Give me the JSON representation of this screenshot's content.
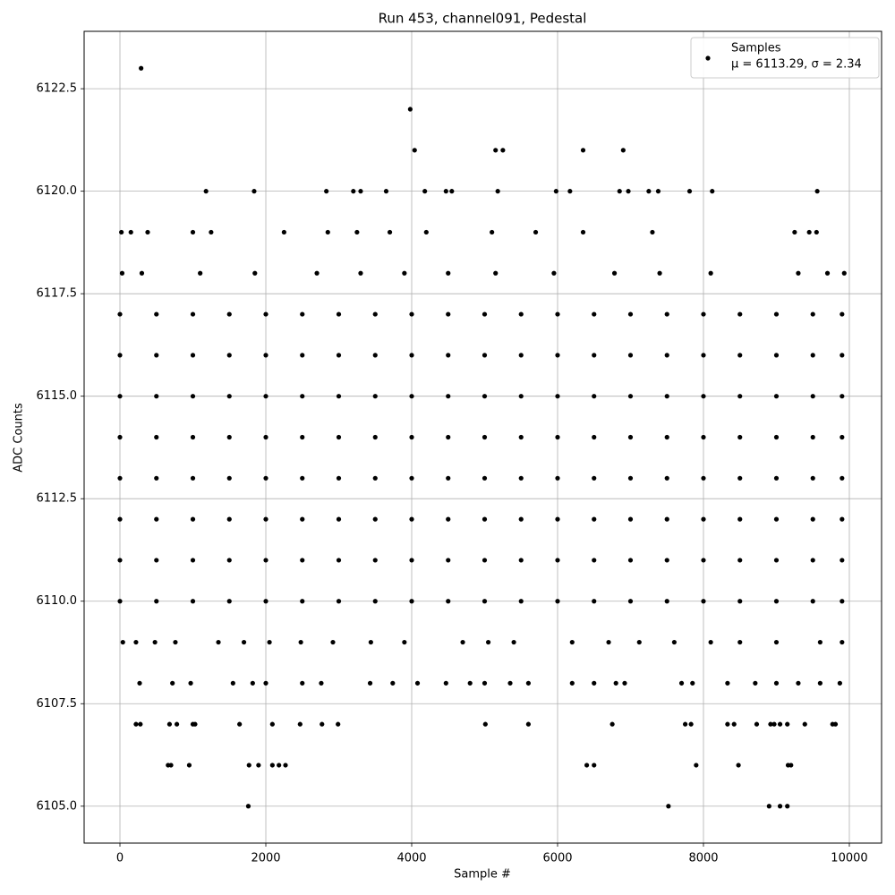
{
  "chart_data": {
    "type": "scatter",
    "title": "Run 453, channel091, Pedestal",
    "x_label": "Sample #",
    "y_label": "ADC Counts",
    "xlim": [
      -491,
      10442
    ],
    "ylim": [
      6104.1,
      6123.9
    ],
    "xticks": [
      0,
      2000,
      4000,
      6000,
      8000,
      10000
    ],
    "yticks": [
      {
        "value": 6105,
        "label": "6105.0"
      },
      {
        "value": 6107.5,
        "label": "6107.5"
      },
      {
        "value": 6110,
        "label": "6110.0"
      },
      {
        "value": 6112.5,
        "label": "6112.5"
      },
      {
        "value": 6115,
        "label": "6115.0"
      },
      {
        "value": 6117.5,
        "label": "6117.5"
      },
      {
        "value": 6120,
        "label": "6120.0"
      },
      {
        "value": 6122.5,
        "label": "6122.5"
      }
    ],
    "grid": true,
    "legend": "upper right",
    "legend_stats": "μ = 6113.29, σ = 2.34",
    "x": [
      290,
      3980,
      4040,
      5150,
      5250,
      6350,
      6900,
      1180,
      1840,
      2830,
      3200,
      3300,
      3650,
      4180,
      4470,
      4550,
      5180,
      5980,
      6170,
      6850,
      6970,
      7250,
      7380,
      7810,
      8120,
      9560,
      1760,
      7520,
      8900,
      9050,
      9150,
      660,
      700,
      950,
      1770,
      1900,
      2090,
      2180,
      2270,
      6400,
      6500,
      7900,
      8480,
      9160,
      9200,
      220,
      280,
      680,
      780,
      1000,
      1030,
      1640,
      2090,
      2470,
      2770,
      2990,
      5010,
      5600,
      6750,
      7750,
      7830,
      8330,
      8420,
      8730,
      8920,
      8970,
      9050,
      9150,
      9390,
      9770,
      9810,
      0,
      500,
      1000,
      1500,
      2000,
      2500,
      3000,
      3500,
      4000,
      4500,
      5000,
      5500,
      6000,
      6500,
      7000,
      7500,
      8000,
      8500,
      9000,
      9500,
      9900,
      0,
      500,
      1000,
      1500,
      2000,
      2500,
      3000,
      3500,
      4000,
      4500,
      5000,
      5500,
      6000,
      6500,
      7000,
      7500,
      8000,
      8500,
      9000,
      9500,
      9900,
      0,
      500,
      1000,
      1500,
      2000,
      2500,
      3000,
      3500,
      4000,
      4500,
      5000,
      5500,
      6000,
      6500,
      7000,
      7500,
      8000,
      8500,
      9000,
      9500,
      9900,
      0,
      500,
      1000,
      1500,
      2000,
      2500,
      3000,
      3500,
      4000,
      4500,
      5000,
      5500,
      6000,
      6500,
      7000,
      7500,
      8000,
      8500,
      9000,
      9500,
      9900,
      0,
      500,
      1000,
      1500,
      2000,
      2500,
      3000,
      3500,
      4000,
      4500,
      5000,
      5500,
      6000,
      6500,
      7000,
      7500,
      8000,
      8500,
      9000,
      9500,
      9900,
      0,
      500,
      1000,
      1500,
      2000,
      2500,
      3000,
      3500,
      4000,
      4500,
      5000,
      5500,
      6000,
      6500,
      7000,
      7500,
      8000,
      8500,
      9000,
      9500,
      9900,
      0,
      500,
      1000,
      1500,
      2000,
      2500,
      3000,
      3500,
      4000,
      4500,
      5000,
      5500,
      6000,
      6500,
      7000,
      7500,
      8000,
      8500,
      9000,
      9500,
      9900,
      0,
      500,
      1000,
      1500,
      2000,
      2500,
      3000,
      3500,
      4000,
      4500,
      5000,
      5500,
      6000,
      6500,
      7000,
      7500,
      8000,
      8500,
      9000,
      9500,
      9900,
      30,
      300,
      1100,
      1850,
      2700,
      3300,
      3900,
      4500,
      5150,
      5950,
      6780,
      7400,
      8100,
      9300,
      9700,
      9930,
      20,
      150,
      380,
      1000,
      1250,
      2250,
      2850,
      3250,
      3700,
      4200,
      5100,
      5700,
      6350,
      7300,
      9250,
      9450,
      9550,
      40,
      220,
      480,
      760,
      1350,
      1700,
      2050,
      2480,
      2920,
      3440,
      3900,
      4700,
      5050,
      5400,
      6200,
      6700,
      7120,
      7600,
      8100,
      8500,
      9000,
      9600,
      9900,
      270,
      720,
      970,
      1550,
      1820,
      2000,
      2500,
      2760,
      3430,
      3740,
      4080,
      4470,
      4800,
      5000,
      5350,
      5600,
      6200,
      6500,
      6800,
      6920,
      7700,
      7850,
      8330,
      8710,
      9000,
      9300,
      9600,
      9870
    ],
    "series": [
      {
        "name": "Samples",
        "color": "#000000",
        "values": [
          6123,
          6122,
          6121,
          6121,
          6121,
          6121,
          6121,
          6120,
          6120,
          6120,
          6120,
          6120,
          6120,
          6120,
          6120,
          6120,
          6120,
          6120,
          6120,
          6120,
          6120,
          6120,
          6120,
          6120,
          6120,
          6120,
          6105,
          6105,
          6105,
          6105,
          6105,
          6106,
          6106,
          6106,
          6106,
          6106,
          6106,
          6106,
          6106,
          6106,
          6106,
          6106,
          6106,
          6106,
          6106,
          6107,
          6107,
          6107,
          6107,
          6107,
          6107,
          6107,
          6107,
          6107,
          6107,
          6107,
          6107,
          6107,
          6107,
          6107,
          6107,
          6107,
          6107,
          6107,
          6107,
          6107,
          6107,
          6107,
          6107,
          6107,
          6107,
          6117,
          6117,
          6117,
          6117,
          6117,
          6117,
          6117,
          6117,
          6117,
          6117,
          6117,
          6117,
          6117,
          6117,
          6117,
          6117,
          6117,
          6117,
          6117,
          6117,
          6117,
          6116,
          6116,
          6116,
          6116,
          6116,
          6116,
          6116,
          6116,
          6116,
          6116,
          6116,
          6116,
          6116,
          6116,
          6116,
          6116,
          6116,
          6116,
          6116,
          6116,
          6116,
          6115,
          6115,
          6115,
          6115,
          6115,
          6115,
          6115,
          6115,
          6115,
          6115,
          6115,
          6115,
          6115,
          6115,
          6115,
          6115,
          6115,
          6115,
          6115,
          6115,
          6115,
          6114,
          6114,
          6114,
          6114,
          6114,
          6114,
          6114,
          6114,
          6114,
          6114,
          6114,
          6114,
          6114,
          6114,
          6114,
          6114,
          6114,
          6114,
          6114,
          6114,
          6114,
          6113,
          6113,
          6113,
          6113,
          6113,
          6113,
          6113,
          6113,
          6113,
          6113,
          6113,
          6113,
          6113,
          6113,
          6113,
          6113,
          6113,
          6113,
          6113,
          6113,
          6113,
          6112,
          6112,
          6112,
          6112,
          6112,
          6112,
          6112,
          6112,
          6112,
          6112,
          6112,
          6112,
          6112,
          6112,
          6112,
          6112,
          6112,
          6112,
          6112,
          6112,
          6112,
          6111,
          6111,
          6111,
          6111,
          6111,
          6111,
          6111,
          6111,
          6111,
          6111,
          6111,
          6111,
          6111,
          6111,
          6111,
          6111,
          6111,
          6111,
          6111,
          6111,
          6111,
          6110,
          6110,
          6110,
          6110,
          6110,
          6110,
          6110,
          6110,
          6110,
          6110,
          6110,
          6110,
          6110,
          6110,
          6110,
          6110,
          6110,
          6110,
          6110,
          6110,
          6110,
          6118,
          6118,
          6118,
          6118,
          6118,
          6118,
          6118,
          6118,
          6118,
          6118,
          6118,
          6118,
          6118,
          6118,
          6118,
          6118,
          6119,
          6119,
          6119,
          6119,
          6119,
          6119,
          6119,
          6119,
          6119,
          6119,
          6119,
          6119,
          6119,
          6119,
          6119,
          6119,
          6119,
          6109,
          6109,
          6109,
          6109,
          6109,
          6109,
          6109,
          6109,
          6109,
          6109,
          6109,
          6109,
          6109,
          6109,
          6109,
          6109,
          6109,
          6109,
          6109,
          6109,
          6109,
          6109,
          6109,
          6108,
          6108,
          6108,
          6108,
          6108,
          6108,
          6108,
          6108,
          6108,
          6108,
          6108,
          6108,
          6108,
          6108,
          6108,
          6108,
          6108,
          6108,
          6108,
          6108,
          6108,
          6108,
          6108,
          6108,
          6108,
          6108,
          6108,
          6108
        ]
      }
    ]
  }
}
